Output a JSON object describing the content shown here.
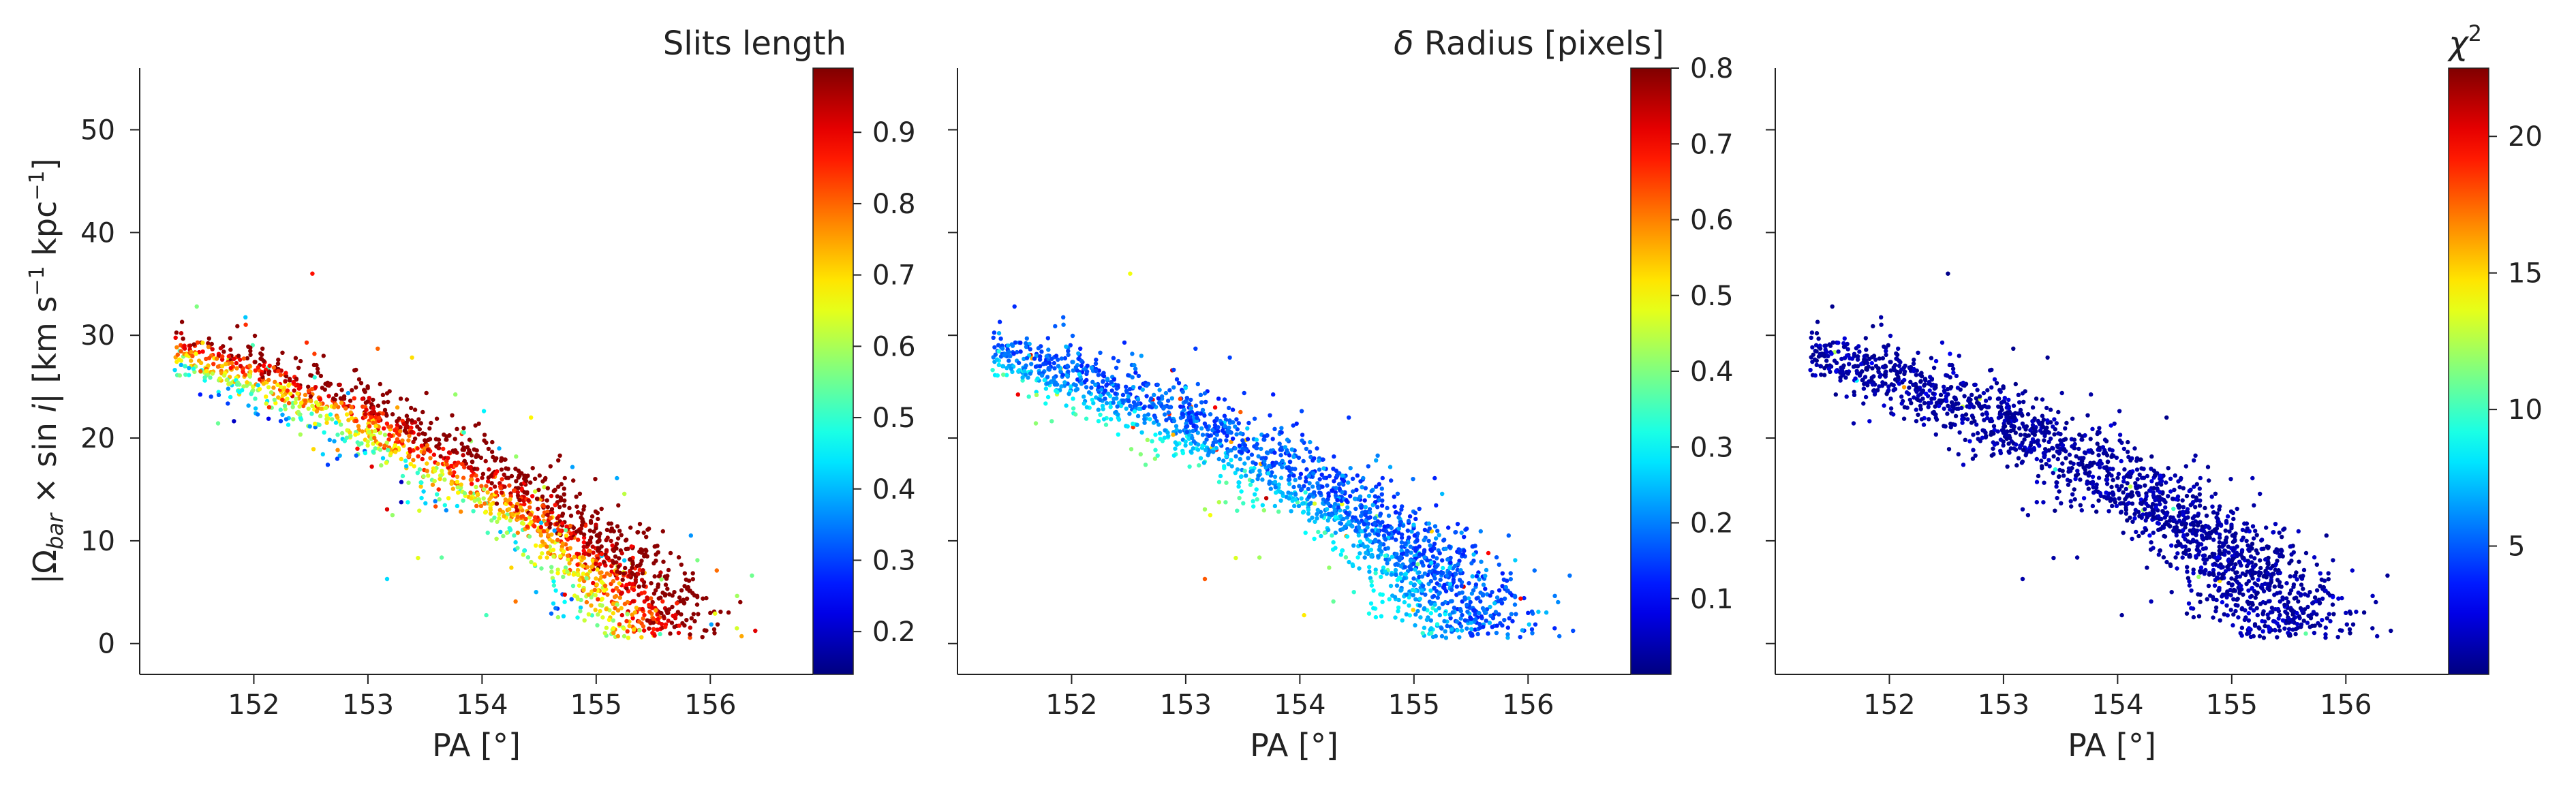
{
  "chart_data": [
    {
      "type": "scatter",
      "xlabel": "PA [°]",
      "ylabel_main": "|Ω",
      "ylabel_sub": "bar",
      "ylabel_rest": " × sin ",
      "ylabel_i": "i",
      "ylabel_units_a": "|   [km s",
      "ylabel_units_exp1": "−1",
      "ylabel_units_b": " kpc",
      "ylabel_units_exp2": "−1",
      "ylabel_units_c": "]",
      "xlim": [
        151.0,
        156.9
      ],
      "ylim": [
        -3,
        56
      ],
      "xticks": [
        "152",
        "153",
        "154",
        "155",
        "156"
      ],
      "yticks": [
        "0",
        "10",
        "20",
        "30",
        "40",
        "50"
      ],
      "colorbar": {
        "title": "Slits length",
        "title_prefix": "",
        "range": [
          0.14,
          0.99
        ],
        "ticks": [
          "0.2",
          "0.3",
          "0.4",
          "0.5",
          "0.6",
          "0.7",
          "0.8",
          "0.9"
        ],
        "cmap": "jet"
      },
      "color_mode": "length",
      "x": [],
      "y": [],
      "c": []
    },
    {
      "type": "scatter",
      "xlabel": "PA [°]",
      "xlim": [
        151.0,
        156.9
      ],
      "ylim": [
        -3,
        56
      ],
      "xticks": [
        "152",
        "153",
        "154",
        "155",
        "156"
      ],
      "yticks": [],
      "colorbar": {
        "title": " Radius [pixels]",
        "title_prefix": "δ",
        "range": [
          0.0,
          0.8
        ],
        "ticks": [
          "0.1",
          "0.2",
          "0.3",
          "0.4",
          "0.5",
          "0.6",
          "0.7",
          "0.8"
        ],
        "cmap": "jet"
      },
      "color_mode": "radius",
      "x": [],
      "y": [],
      "c": []
    },
    {
      "type": "scatter",
      "xlabel": "PA [°]",
      "xlim": [
        151.0,
        156.9
      ],
      "ylim": [
        -3,
        56
      ],
      "xticks": [
        "152",
        "153",
        "154",
        "155",
        "156"
      ],
      "yticks": [],
      "colorbar": {
        "title": "",
        "title_prefix": "χ",
        "title_sup": "2",
        "range": [
          0.3,
          22.5
        ],
        "ticks": [
          "5",
          "10",
          "15",
          "20"
        ],
        "cmap": "jet"
      },
      "color_mode": "chi2",
      "x": [],
      "y": [],
      "c": []
    }
  ]
}
